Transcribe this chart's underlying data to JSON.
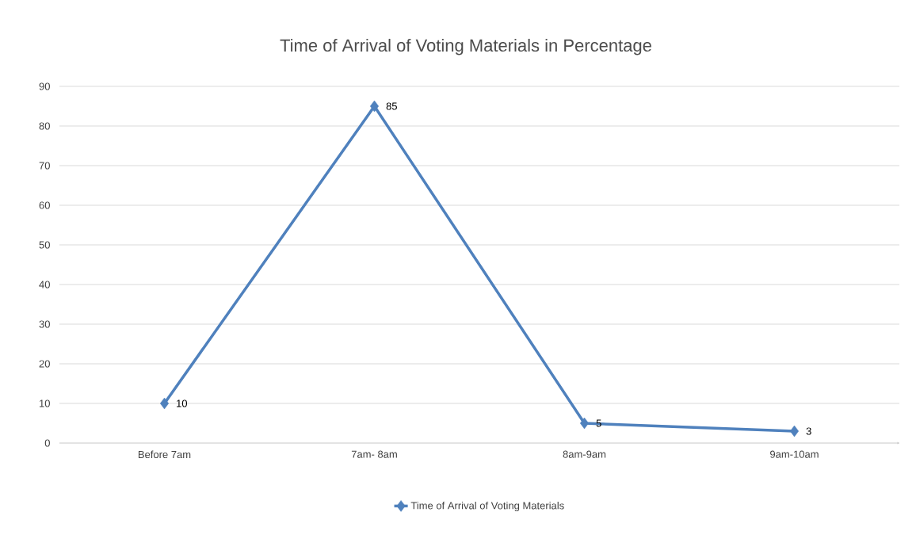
{
  "chart_data": {
    "type": "line",
    "title": "Time of Arrival of Voting Materials in Percentage",
    "categories": [
      "Before 7am",
      "7am- 8am",
      "8am-9am",
      "9am-10am"
    ],
    "series": [
      {
        "name": "Time of Arrival of Voting Materials",
        "color": "#4f81bd",
        "values": [
          10,
          85,
          5,
          3
        ]
      }
    ],
    "ylim": [
      0,
      90
    ],
    "yticks": [
      0,
      10,
      20,
      30,
      40,
      50,
      60,
      70,
      80,
      90
    ],
    "grid": "y",
    "legend": "bottom",
    "marker": "diamond",
    "line_style": "solid",
    "data_labels": true
  }
}
